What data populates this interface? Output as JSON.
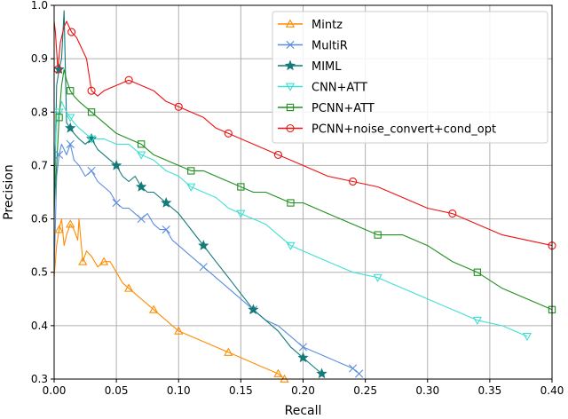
{
  "chart_data": {
    "type": "line",
    "title": "",
    "xlabel": "Recall",
    "ylabel": "Precision",
    "xlim": [
      0.0,
      0.4
    ],
    "ylim": [
      0.3,
      1.0
    ],
    "xticks": [
      "0.00",
      "0.05",
      "0.10",
      "0.15",
      "0.20",
      "0.25",
      "0.30",
      "0.35",
      "0.40"
    ],
    "yticks": [
      "0.3",
      "0.4",
      "0.5",
      "0.6",
      "0.7",
      "0.8",
      "0.9",
      "1.0"
    ],
    "grid": true,
    "legend_position": "top-right",
    "series": [
      {
        "name": "Mintz",
        "color": "#ff8c00",
        "marker": "triangle-up",
        "x": [
          0.0,
          0.002,
          0.004,
          0.006,
          0.008,
          0.01,
          0.013,
          0.016,
          0.019,
          0.02,
          0.023,
          0.026,
          0.03,
          0.035,
          0.04,
          0.045,
          0.05,
          0.055,
          0.06,
          0.065,
          0.07,
          0.075,
          0.08,
          0.085,
          0.09,
          0.095,
          0.1,
          0.11,
          0.12,
          0.13,
          0.14,
          0.15,
          0.16,
          0.17,
          0.18,
          0.185
        ],
        "y": [
          0.49,
          0.55,
          0.58,
          0.6,
          0.55,
          0.57,
          0.59,
          0.58,
          0.56,
          0.6,
          0.52,
          0.54,
          0.53,
          0.51,
          0.52,
          0.52,
          0.5,
          0.48,
          0.47,
          0.46,
          0.45,
          0.44,
          0.43,
          0.42,
          0.41,
          0.4,
          0.39,
          0.38,
          0.37,
          0.36,
          0.35,
          0.34,
          0.33,
          0.32,
          0.31,
          0.3
        ]
      },
      {
        "name": "MultiR",
        "color": "#5a8de0",
        "marker": "x",
        "x": [
          0.0,
          0.002,
          0.004,
          0.006,
          0.008,
          0.01,
          0.013,
          0.016,
          0.02,
          0.025,
          0.03,
          0.035,
          0.04,
          0.045,
          0.05,
          0.055,
          0.06,
          0.065,
          0.07,
          0.075,
          0.08,
          0.085,
          0.09,
          0.095,
          0.1,
          0.11,
          0.12,
          0.13,
          0.14,
          0.15,
          0.16,
          0.17,
          0.18,
          0.19,
          0.2,
          0.21,
          0.22,
          0.23,
          0.24,
          0.245
        ],
        "y": [
          0.5,
          0.68,
          0.72,
          0.74,
          0.73,
          0.72,
          0.74,
          0.71,
          0.7,
          0.68,
          0.69,
          0.67,
          0.66,
          0.65,
          0.63,
          0.62,
          0.62,
          0.61,
          0.6,
          0.61,
          0.59,
          0.58,
          0.58,
          0.56,
          0.55,
          0.53,
          0.51,
          0.49,
          0.47,
          0.45,
          0.43,
          0.41,
          0.4,
          0.38,
          0.36,
          0.35,
          0.34,
          0.33,
          0.32,
          0.31
        ]
      },
      {
        "name": "MIML",
        "color": "#147a7a",
        "marker": "star",
        "x": [
          0.0,
          0.002,
          0.004,
          0.006,
          0.008,
          0.01,
          0.013,
          0.016,
          0.02,
          0.025,
          0.03,
          0.035,
          0.04,
          0.045,
          0.05,
          0.055,
          0.06,
          0.065,
          0.07,
          0.075,
          0.08,
          0.085,
          0.09,
          0.095,
          0.1,
          0.11,
          0.12,
          0.13,
          0.14,
          0.15,
          0.16,
          0.17,
          0.18,
          0.19,
          0.2,
          0.205,
          0.21,
          0.215
        ],
        "y": [
          0.6,
          0.85,
          0.88,
          0.9,
          0.99,
          0.78,
          0.77,
          0.76,
          0.75,
          0.74,
          0.75,
          0.73,
          0.72,
          0.71,
          0.7,
          0.68,
          0.67,
          0.68,
          0.66,
          0.65,
          0.65,
          0.64,
          0.63,
          0.62,
          0.61,
          0.58,
          0.55,
          0.52,
          0.49,
          0.46,
          0.43,
          0.41,
          0.39,
          0.36,
          0.34,
          0.33,
          0.32,
          0.31
        ]
      },
      {
        "name": "CNN+ATT",
        "color": "#40e0d0",
        "marker": "triangle-down",
        "x": [
          0.0,
          0.002,
          0.004,
          0.006,
          0.008,
          0.01,
          0.013,
          0.016,
          0.02,
          0.025,
          0.03,
          0.04,
          0.05,
          0.06,
          0.07,
          0.08,
          0.09,
          0.1,
          0.11,
          0.12,
          0.13,
          0.14,
          0.15,
          0.16,
          0.17,
          0.18,
          0.19,
          0.2,
          0.22,
          0.24,
          0.26,
          0.28,
          0.3,
          0.32,
          0.34,
          0.36,
          0.38
        ],
        "y": [
          0.7,
          0.78,
          0.8,
          0.82,
          0.81,
          0.8,
          0.79,
          0.78,
          0.77,
          0.76,
          0.75,
          0.75,
          0.74,
          0.74,
          0.72,
          0.71,
          0.69,
          0.68,
          0.66,
          0.65,
          0.64,
          0.62,
          0.61,
          0.6,
          0.59,
          0.57,
          0.55,
          0.54,
          0.52,
          0.5,
          0.49,
          0.47,
          0.45,
          0.43,
          0.41,
          0.4,
          0.38
        ]
      },
      {
        "name": "PCNN+ATT",
        "color": "#1f8f1f",
        "marker": "square",
        "x": [
          0.0,
          0.002,
          0.004,
          0.006,
          0.008,
          0.01,
          0.013,
          0.016,
          0.02,
          0.025,
          0.03,
          0.04,
          0.05,
          0.06,
          0.07,
          0.08,
          0.09,
          0.1,
          0.11,
          0.12,
          0.13,
          0.14,
          0.15,
          0.16,
          0.17,
          0.18,
          0.19,
          0.2,
          0.22,
          0.24,
          0.26,
          0.28,
          0.3,
          0.32,
          0.34,
          0.36,
          0.38,
          0.4
        ],
        "y": [
          0.62,
          0.7,
          0.79,
          0.85,
          0.88,
          0.86,
          0.84,
          0.83,
          0.82,
          0.81,
          0.8,
          0.78,
          0.76,
          0.75,
          0.74,
          0.72,
          0.71,
          0.7,
          0.69,
          0.69,
          0.68,
          0.67,
          0.66,
          0.65,
          0.65,
          0.64,
          0.63,
          0.63,
          0.61,
          0.59,
          0.57,
          0.57,
          0.55,
          0.52,
          0.5,
          0.47,
          0.45,
          0.43
        ]
      },
      {
        "name": "PCNN+noise_convert+cond_opt",
        "color": "#ee1111",
        "marker": "circle",
        "x": [
          0.0,
          0.001,
          0.003,
          0.005,
          0.008,
          0.01,
          0.014,
          0.018,
          0.022,
          0.026,
          0.03,
          0.035,
          0.04,
          0.05,
          0.06,
          0.07,
          0.08,
          0.09,
          0.1,
          0.11,
          0.12,
          0.13,
          0.14,
          0.15,
          0.16,
          0.17,
          0.18,
          0.19,
          0.2,
          0.22,
          0.24,
          0.26,
          0.28,
          0.3,
          0.32,
          0.34,
          0.36,
          0.38,
          0.4
        ],
        "y": [
          0.97,
          0.95,
          0.88,
          0.93,
          0.96,
          0.97,
          0.95,
          0.94,
          0.92,
          0.9,
          0.84,
          0.83,
          0.84,
          0.85,
          0.86,
          0.85,
          0.84,
          0.82,
          0.81,
          0.8,
          0.79,
          0.77,
          0.76,
          0.75,
          0.74,
          0.73,
          0.72,
          0.71,
          0.7,
          0.68,
          0.67,
          0.66,
          0.64,
          0.62,
          0.61,
          0.59,
          0.57,
          0.56,
          0.55
        ]
      }
    ]
  }
}
